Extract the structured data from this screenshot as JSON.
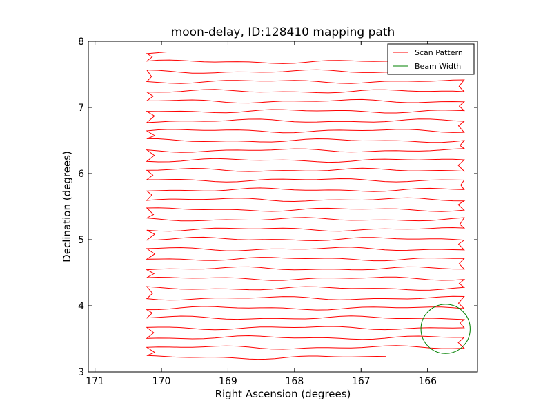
{
  "chart_data": {
    "type": "line",
    "title": "moon-delay, ID:128410 mapping path",
    "xlabel": "Right Ascension (degrees)",
    "ylabel": "Declination (degrees)",
    "xlim": [
      171.1,
      165.25
    ],
    "ylim": [
      3,
      8
    ],
    "x_inverted": true,
    "x_ticks": [
      "171",
      "170",
      "169",
      "168",
      "167",
      "166"
    ],
    "y_ticks": [
      "3",
      "4",
      "5",
      "6",
      "7",
      "8"
    ],
    "legend_position": "upper right",
    "colors": {
      "scan": "#ff0000",
      "beam": "#008000"
    },
    "series": [
      {
        "name": "Scan Pattern",
        "color": "#ff0000",
        "x_left": 170.22,
        "x_right": 165.45,
        "x_start": 166.63,
        "x_end": 169.92,
        "y_start": 3.22,
        "y_end": 7.69,
        "row_spacing": 0.149,
        "pass_count": 31
      },
      {
        "name": "Beam Width",
        "color": "#008000",
        "center": [
          165.73,
          3.65
        ],
        "radius": 0.37
      }
    ]
  }
}
